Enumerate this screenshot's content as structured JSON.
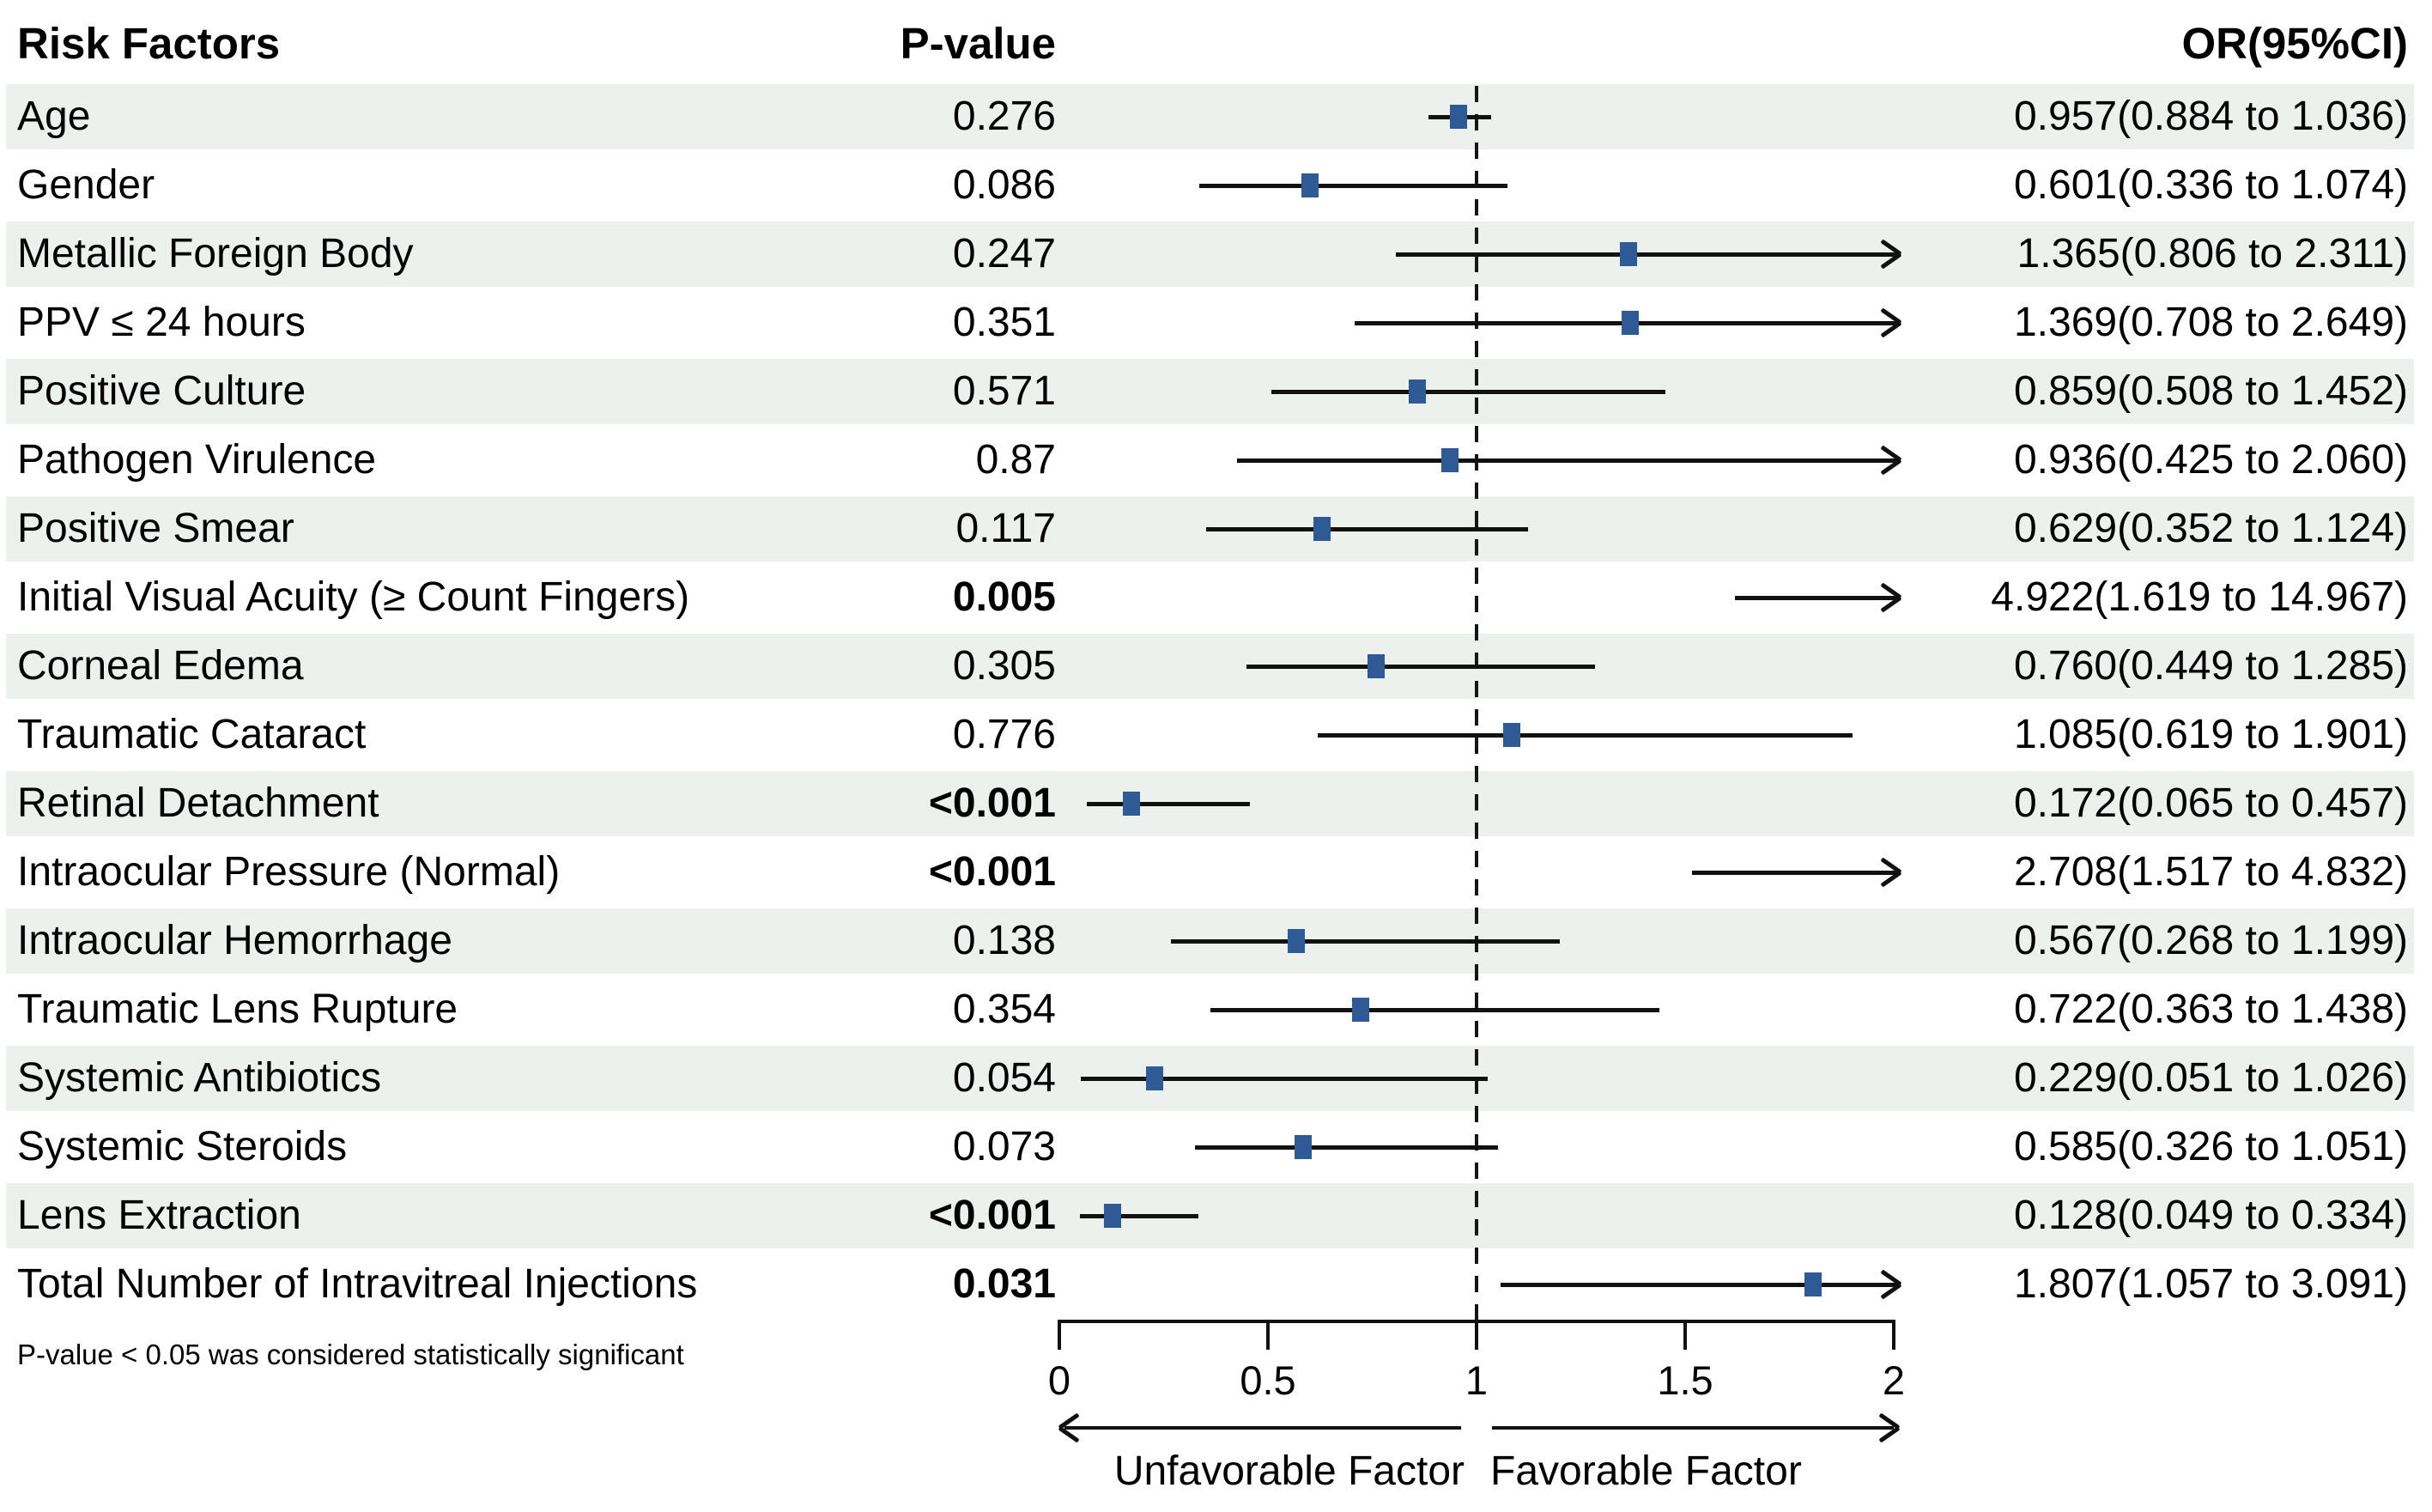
{
  "header": {
    "risk_factors": "Risk Factors",
    "p_value": "P-value",
    "or_ci": "OR(95%CI)"
  },
  "footnote": "P-value < 0.05 was considered statistically significant",
  "direction_labels": {
    "left": "Unfavorable Factor",
    "right": "Favorable Factor"
  },
  "axis": {
    "min": 0,
    "max": 2,
    "reference_line": 1,
    "ticks": [
      "0",
      "0.5",
      "1",
      "1.5",
      "2"
    ],
    "tick_values": [
      0,
      0.5,
      1,
      1.5,
      2
    ]
  },
  "colors": {
    "row_band": "#edf1ee",
    "marker": "#2e5a96",
    "line": "#111111",
    "text": "#000000"
  },
  "rows": [
    {
      "label": "Age",
      "p": "0.276",
      "p_bold": false,
      "or_text": "0.957(0.884 to 1.036)",
      "or": 0.957,
      "lo": 0.884,
      "hi": 1.036
    },
    {
      "label": "Gender",
      "p": "0.086",
      "p_bold": false,
      "or_text": "0.601(0.336 to 1.074)",
      "or": 0.601,
      "lo": 0.336,
      "hi": 1.074
    },
    {
      "label": "Metallic Foreign Body",
      "p": "0.247",
      "p_bold": false,
      "or_text": "1.365(0.806 to 2.311)",
      "or": 1.365,
      "lo": 0.806,
      "hi": 2.311
    },
    {
      "label": "PPV ≤ 24 hours",
      "p": "0.351",
      "p_bold": false,
      "or_text": "1.369(0.708 to 2.649)",
      "or": 1.369,
      "lo": 0.708,
      "hi": 2.649
    },
    {
      "label": "Positive Culture",
      "p": "0.571",
      "p_bold": false,
      "or_text": "0.859(0.508 to 1.452)",
      "or": 0.859,
      "lo": 0.508,
      "hi": 1.452
    },
    {
      "label": "Pathogen Virulence",
      "p": "0.87",
      "p_bold": false,
      "or_text": "0.936(0.425 to 2.060)",
      "or": 0.936,
      "lo": 0.425,
      "hi": 2.06
    },
    {
      "label": "Positive Smear",
      "p": "0.117",
      "p_bold": false,
      "or_text": "0.629(0.352 to 1.124)",
      "or": 0.629,
      "lo": 0.352,
      "hi": 1.124
    },
    {
      "label": "Initial Visual Acuity (≥ Count Fingers)",
      "p": "0.005",
      "p_bold": true,
      "or_text": "4.922(1.619 to 14.967)",
      "or": 4.922,
      "lo": 1.619,
      "hi": 14.967
    },
    {
      "label": "Corneal Edema",
      "p": "0.305",
      "p_bold": false,
      "or_text": "0.760(0.449 to 1.285)",
      "or": 0.76,
      "lo": 0.449,
      "hi": 1.285
    },
    {
      "label": "Traumatic Cataract",
      "p": "0.776",
      "p_bold": false,
      "or_text": "1.085(0.619 to 1.901)",
      "or": 1.085,
      "lo": 0.619,
      "hi": 1.901
    },
    {
      "label": "Retinal Detachment",
      "p": "<0.001",
      "p_bold": true,
      "or_text": "0.172(0.065 to 0.457)",
      "or": 0.172,
      "lo": 0.065,
      "hi": 0.457
    },
    {
      "label": "Intraocular Pressure (Normal)",
      "p": "<0.001",
      "p_bold": true,
      "or_text": "2.708(1.517 to 4.832)",
      "or": 2.708,
      "lo": 1.517,
      "hi": 4.832
    },
    {
      "label": "Intraocular Hemorrhage",
      "p": "0.138",
      "p_bold": false,
      "or_text": "0.567(0.268 to 1.199)",
      "or": 0.567,
      "lo": 0.268,
      "hi": 1.199
    },
    {
      "label": "Traumatic Lens Rupture",
      "p": "0.354",
      "p_bold": false,
      "or_text": "0.722(0.363 to 1.438)",
      "or": 0.722,
      "lo": 0.363,
      "hi": 1.438
    },
    {
      "label": "Systemic Antibiotics",
      "p": "0.054",
      "p_bold": false,
      "or_text": "0.229(0.051 to 1.026)",
      "or": 0.229,
      "lo": 0.051,
      "hi": 1.026
    },
    {
      "label": "Systemic Steroids",
      "p": "0.073",
      "p_bold": false,
      "or_text": "0.585(0.326 to 1.051)",
      "or": 0.585,
      "lo": 0.326,
      "hi": 1.051
    },
    {
      "label": "Lens Extraction",
      "p": "<0.001",
      "p_bold": true,
      "or_text": "0.128(0.049 to 0.334)",
      "or": 0.128,
      "lo": 0.049,
      "hi": 0.334
    },
    {
      "label": "Total Number of Intravitreal Injections",
      "p": "0.031",
      "p_bold": true,
      "or_text": "1.807(1.057 to 3.091)",
      "or": 1.807,
      "lo": 1.057,
      "hi": 3.091
    }
  ],
  "chart_data": {
    "type": "forest",
    "title": "",
    "categories": [
      "Age",
      "Gender",
      "Metallic Foreign Body",
      "PPV ≤ 24 hours",
      "Positive Culture",
      "Pathogen Virulence",
      "Positive Smear",
      "Initial Visual Acuity (≥ Count Fingers)",
      "Corneal Edema",
      "Traumatic Cataract",
      "Retinal Detachment",
      "Intraocular Pressure (Normal)",
      "Intraocular Hemorrhage",
      "Traumatic Lens Rupture",
      "Systemic Antibiotics",
      "Systemic Steroids",
      "Lens Extraction",
      "Total Number of Intravitreal Injections"
    ],
    "p_values": [
      "0.276",
      "0.086",
      "0.247",
      "0.351",
      "0.571",
      "0.87",
      "0.117",
      "0.005",
      "0.305",
      "0.776",
      "<0.001",
      "<0.001",
      "0.138",
      "0.354",
      "0.054",
      "0.073",
      "<0.001",
      "0.031"
    ],
    "series": [
      {
        "name": "OR",
        "values": [
          0.957,
          0.601,
          1.365,
          1.369,
          0.859,
          0.936,
          0.629,
          4.922,
          0.76,
          1.085,
          0.172,
          2.708,
          0.567,
          0.722,
          0.229,
          0.585,
          0.128,
          1.807
        ]
      },
      {
        "name": "CI_low",
        "values": [
          0.884,
          0.336,
          0.806,
          0.708,
          0.508,
          0.425,
          0.352,
          1.619,
          0.449,
          0.619,
          0.065,
          1.517,
          0.268,
          0.363,
          0.051,
          0.326,
          0.049,
          1.057
        ]
      },
      {
        "name": "CI_high",
        "values": [
          1.036,
          1.074,
          2.311,
          2.649,
          1.452,
          2.06,
          1.124,
          14.967,
          1.285,
          1.901,
          0.457,
          4.832,
          1.199,
          1.438,
          1.026,
          1.051,
          0.334,
          3.091
        ]
      }
    ],
    "xlim": [
      0,
      2
    ],
    "x_ticks": [
      0,
      0.5,
      1,
      1.5,
      2
    ],
    "reference_line": 1,
    "clip_at_max_with_arrow": true,
    "xlabel_left": "Unfavorable Factor",
    "xlabel_right": "Favorable Factor",
    "footnote": "P-value < 0.05 was considered statistically significant",
    "legend_position": "none",
    "grid": false
  }
}
